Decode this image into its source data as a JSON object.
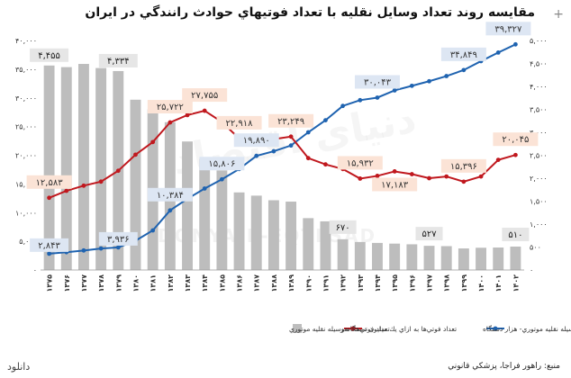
{
  "title": "مقايسه روند تعداد وسايل نقليه با تعداد فوتيهاي حوادث رانندگي در ايران",
  "download_label": "دانلود",
  "source": "منبع: راهور فراجا، پزشكي قانوني",
  "watermark": "دنیای اقتصاد",
  "watermark2": "DONYA-E-EQTESAD",
  "plus_icon": "+",
  "colors": {
    "bar": "#bdbdbd",
    "deaths": "#c0181e",
    "vehicles": "#1f63b0",
    "label_bg_blue": "#dde6f3",
    "label_bg_red": "#fbe3d6"
  },
  "chart_data": {
    "type": "bar",
    "categories": [
      "۱۳۷۵",
      "۱۳۷۶",
      "۱۳۷۷",
      "۱۳۷۸",
      "۱۳۷۹",
      "۱۳۸۰",
      "۱۳۸۱",
      "۱۳۸۲",
      "۱۳۸۳",
      "۱۳۸۴",
      "۱۳۸۵",
      "۱۳۸۶",
      "۱۳۸۷",
      "۱۳۸۸",
      "۱۳۸۹",
      "۱۳۹۰",
      "۱۳۹۱",
      "۱۳۹۲",
      "۱۳۹۳",
      "۱۳۹۴",
      "۱۳۹۵",
      "۱۳۹۶",
      "۱۳۹۷",
      "۱۳۹۸",
      "۱۳۹۹",
      "۱۴۰۰",
      "۱۴۰۱",
      "۱۴۰۲"
    ],
    "left_axis": {
      "min": 0,
      "max": 40000,
      "ticks": [
        "۰",
        "۵,۰۰۰",
        "۱۰,۰۰۰",
        "۱۵,۰۰۰",
        "۲۰,۰۰۰",
        "۲۵,۰۰۰",
        "۳۰,۰۰۰",
        "۳۵,۰۰۰",
        "۴۰,۰۰۰"
      ]
    },
    "right_axis": {
      "min": 0,
      "max": 5000,
      "ticks": [
        "۰",
        "۵۰۰",
        "۱,۰۰۰",
        "۱,۵۰۰",
        "۲,۰۰۰",
        "۲,۵۰۰",
        "۳,۰۰۰",
        "۳,۵۰۰",
        "۴,۰۰۰",
        "۴,۵۰۰",
        "۵,۰۰۰"
      ]
    },
    "series": [
      {
        "name": "تعداد فوتي‌ها به ازاي يك ميليون دستگاه وسيله نقليه موتوري",
        "kind": "bar",
        "axis": "right",
        "values": [
          4455,
          4420,
          4490,
          4400,
          4334,
          3710,
          3500,
          3220,
          2800,
          2420,
          2170,
          1690,
          1620,
          1520,
          1490,
          1130,
          1060,
          670,
          610,
          590,
          575,
          560,
          527,
          520,
          470,
          485,
          490,
          510
        ]
      },
      {
        "name": "تعداد فوتي‌ها- نفر",
        "kind": "line",
        "axis": "left",
        "values": [
          12583,
          13800,
          14700,
          15400,
          17300,
          20100,
          22300,
          25722,
          27000,
          27755,
          25800,
          22918,
          23100,
          22800,
          23249,
          19500,
          18400,
          17600,
          15932,
          16400,
          17183,
          16700,
          16000,
          16300,
          15396,
          16300,
          19200,
          20045
        ]
      },
      {
        "name": "تعداد وسيله نقليه موتوري- هزار دستگاه",
        "kind": "line",
        "axis": "left",
        "values": [
          2843,
          3100,
          3400,
          3750,
          3936,
          5100,
          6900,
          10384,
          12400,
          14200,
          15806,
          17600,
          19890,
          20700,
          21700,
          24000,
          26100,
          28600,
          29600,
          30043,
          31300,
          32100,
          32900,
          33800,
          34849,
          36400,
          37900,
          39327
        ]
      }
    ],
    "data_labels": {
      "bars": [
        {
          "i": 0,
          "text": "۴,۴۵۵"
        },
        {
          "i": 4,
          "text": "۴,۳۳۴"
        },
        {
          "i": 17,
          "text": "۶۷۰"
        },
        {
          "i": 22,
          "text": "۵۲۷"
        },
        {
          "i": 27,
          "text": "۵۱۰"
        }
      ],
      "deaths": [
        {
          "i": 0,
          "text": "۱۲,۵۸۳"
        },
        {
          "i": 7,
          "text": "۲۵,۷۲۲"
        },
        {
          "i": 9,
          "text": "۲۷,۷۵۵"
        },
        {
          "i": 11,
          "text": "۲۲,۹۱۸"
        },
        {
          "i": 14,
          "text": "۲۳,۲۴۹"
        },
        {
          "i": 18,
          "text": "۱۵,۹۳۲"
        },
        {
          "i": 20,
          "text": "۱۷,۱۸۳"
        },
        {
          "i": 24,
          "text": "۱۵,۳۹۶"
        },
        {
          "i": 27,
          "text": "۲۰,۰۴۵"
        }
      ],
      "vehicles": [
        {
          "i": 0,
          "text": "۲,۸۴۳"
        },
        {
          "i": 4,
          "text": "۳,۹۳۶"
        },
        {
          "i": 7,
          "text": "۱۰,۳۸۴"
        },
        {
          "i": 10,
          "text": "۱۵,۸۰۶"
        },
        {
          "i": 12,
          "text": "۱۹,۸۹۰"
        },
        {
          "i": 19,
          "text": "۳۰,۰۴۳"
        },
        {
          "i": 24,
          "text": "۳۴,۸۴۹"
        },
        {
          "i": 27,
          "text": "۳۹,۳۲۷"
        }
      ]
    },
    "legend": {
      "position": "bottom"
    },
    "grid": false
  }
}
